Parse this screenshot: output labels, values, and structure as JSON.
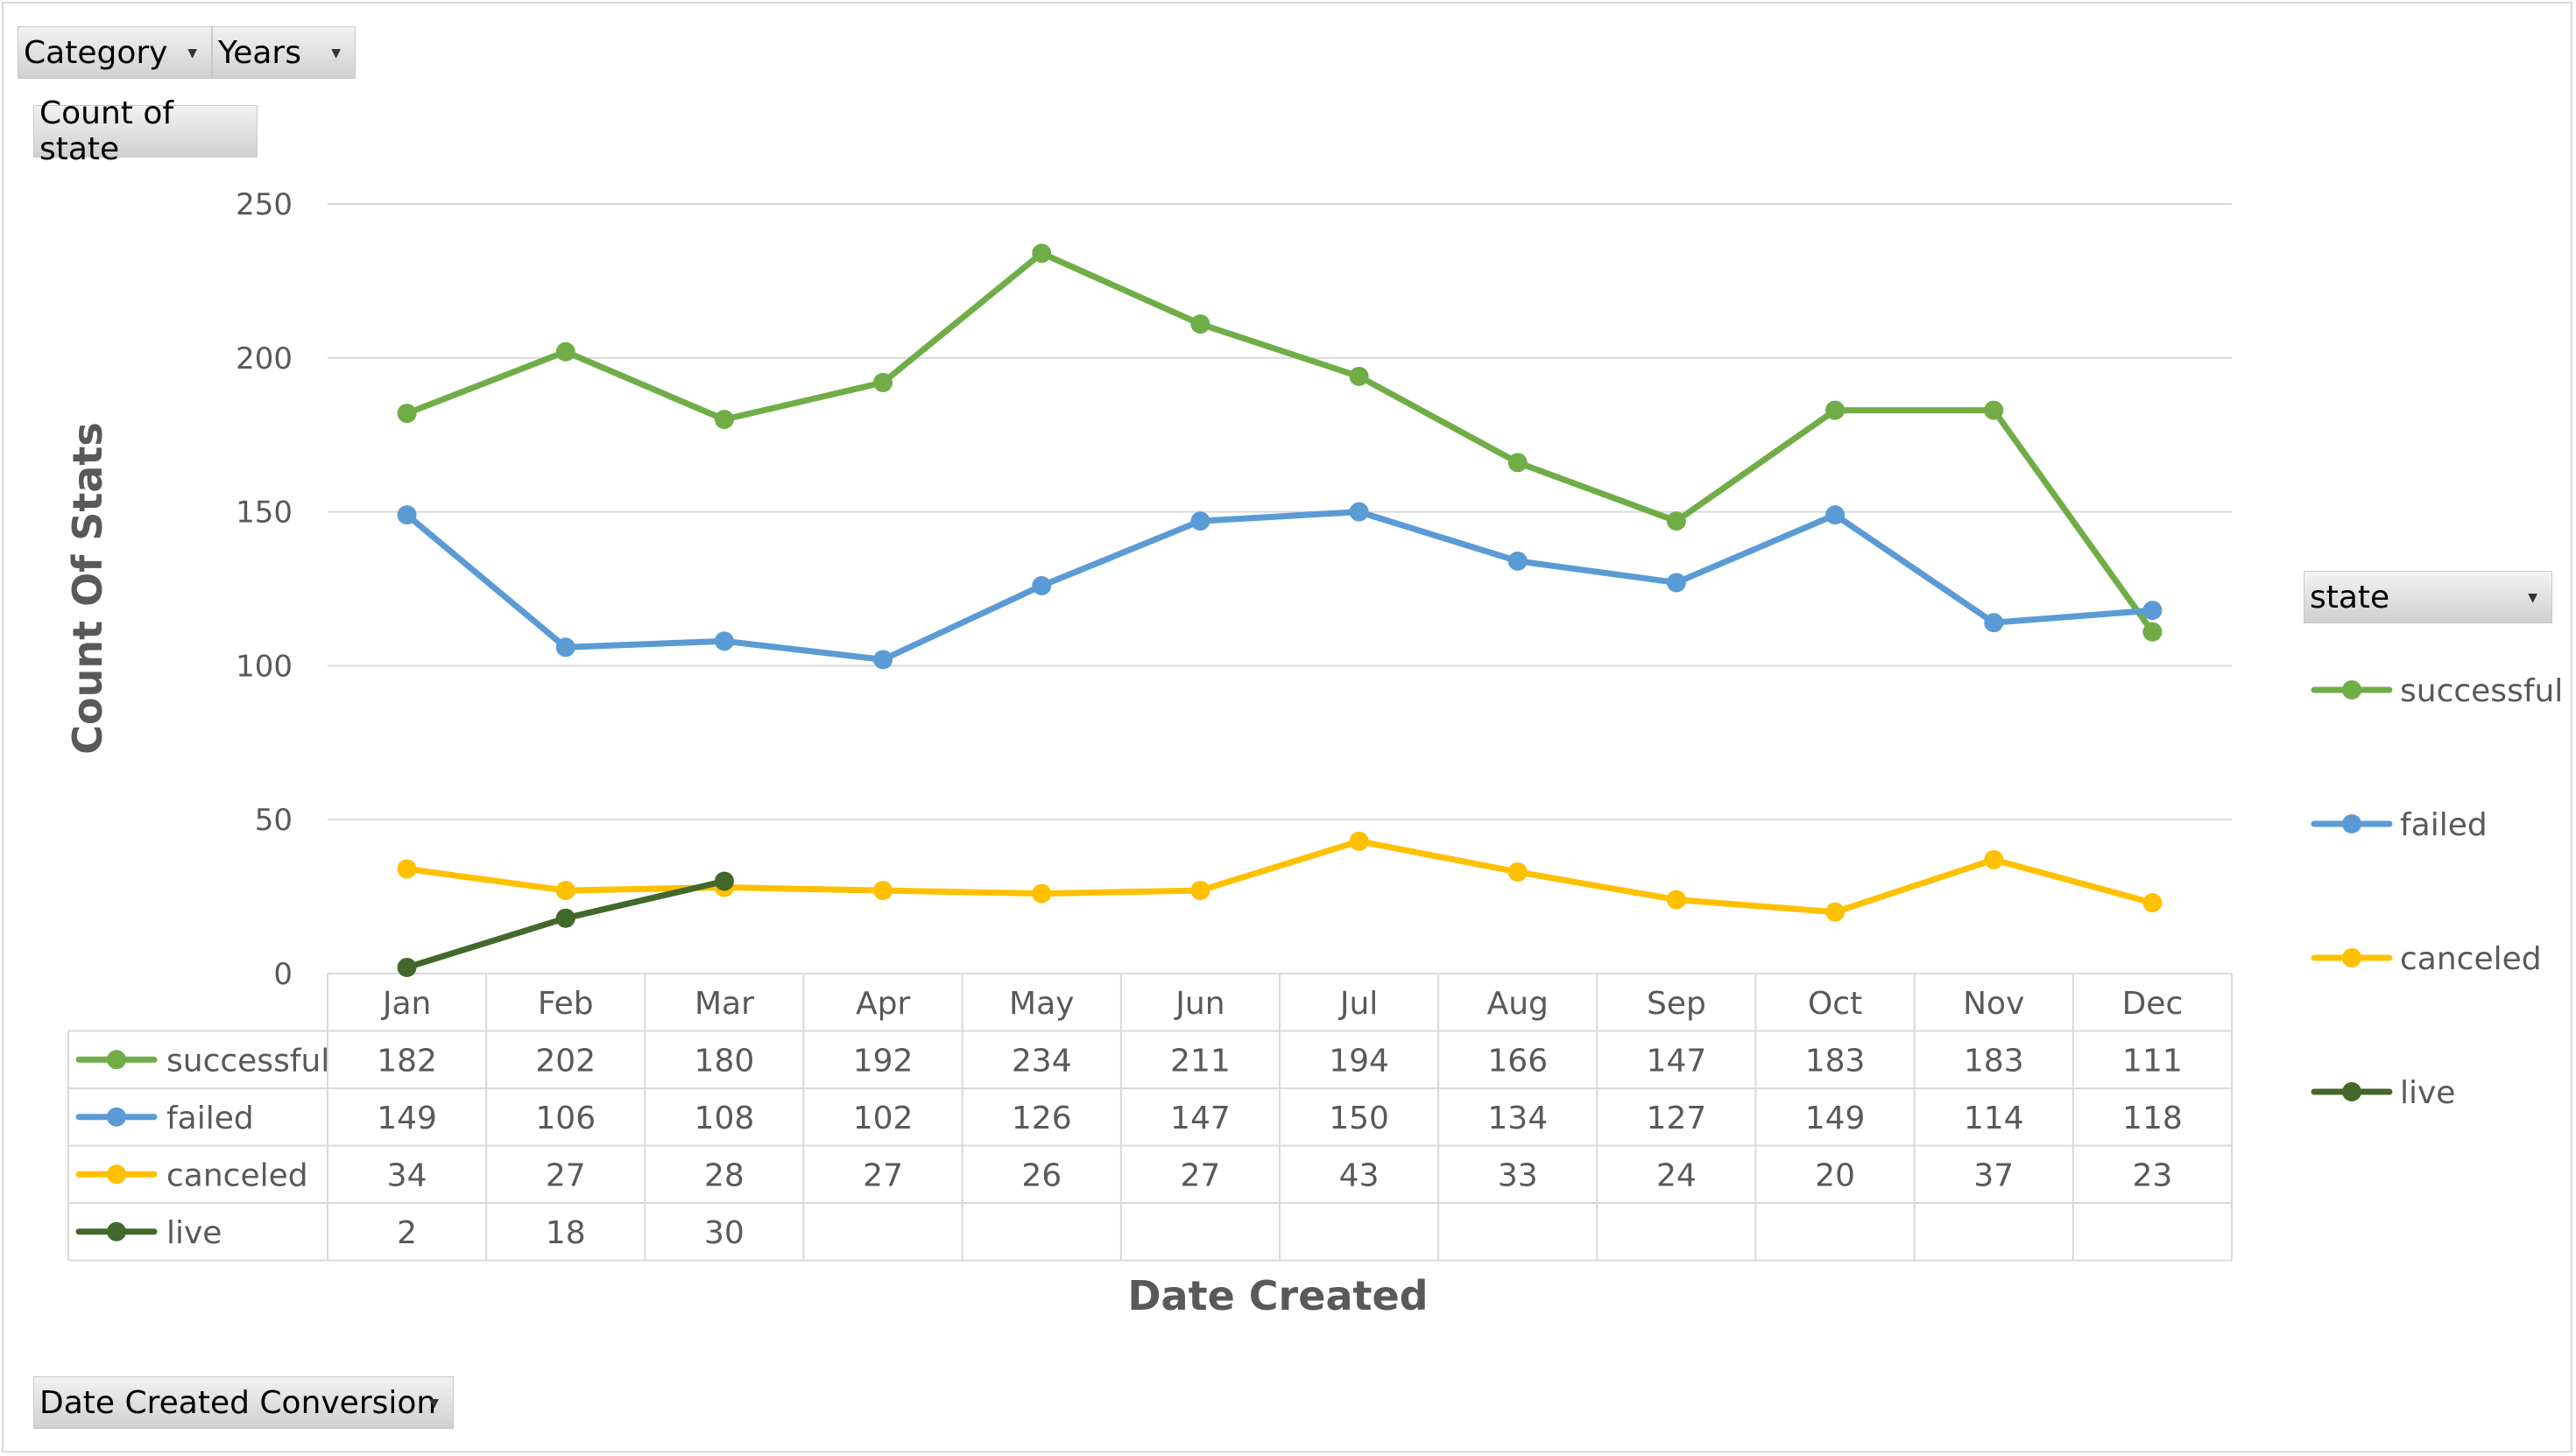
{
  "filters": {
    "category_label": "Category",
    "years_label": "Years",
    "values_label": "Count of state",
    "axis_field_label": "Date Created Conversion",
    "legend_field_label": "state"
  },
  "chart_data": {
    "type": "line",
    "xlabel": "Date Created",
    "ylabel": "Count Of Stats",
    "ylim": [
      0,
      250
    ],
    "yticks": [
      0,
      50,
      100,
      150,
      200,
      250
    ],
    "grid": true,
    "legend": "right",
    "categories": [
      "Jan",
      "Feb",
      "Mar",
      "Apr",
      "May",
      "Jun",
      "Jul",
      "Aug",
      "Sep",
      "Oct",
      "Nov",
      "Dec"
    ],
    "series": [
      {
        "name": "successful",
        "color": "#70ad47",
        "values": [
          182,
          202,
          180,
          192,
          234,
          211,
          194,
          166,
          147,
          183,
          183,
          111
        ]
      },
      {
        "name": "failed",
        "color": "#5b9bd5",
        "values": [
          149,
          106,
          108,
          102,
          126,
          147,
          150,
          134,
          127,
          149,
          114,
          118
        ]
      },
      {
        "name": "canceled",
        "color": "#ffc000",
        "values": [
          34,
          27,
          28,
          27,
          26,
          27,
          43,
          33,
          24,
          20,
          37,
          23
        ]
      },
      {
        "name": "live",
        "color": "#43682b",
        "values": [
          2,
          18,
          30,
          null,
          null,
          null,
          null,
          null,
          null,
          null,
          null,
          null
        ]
      }
    ]
  }
}
